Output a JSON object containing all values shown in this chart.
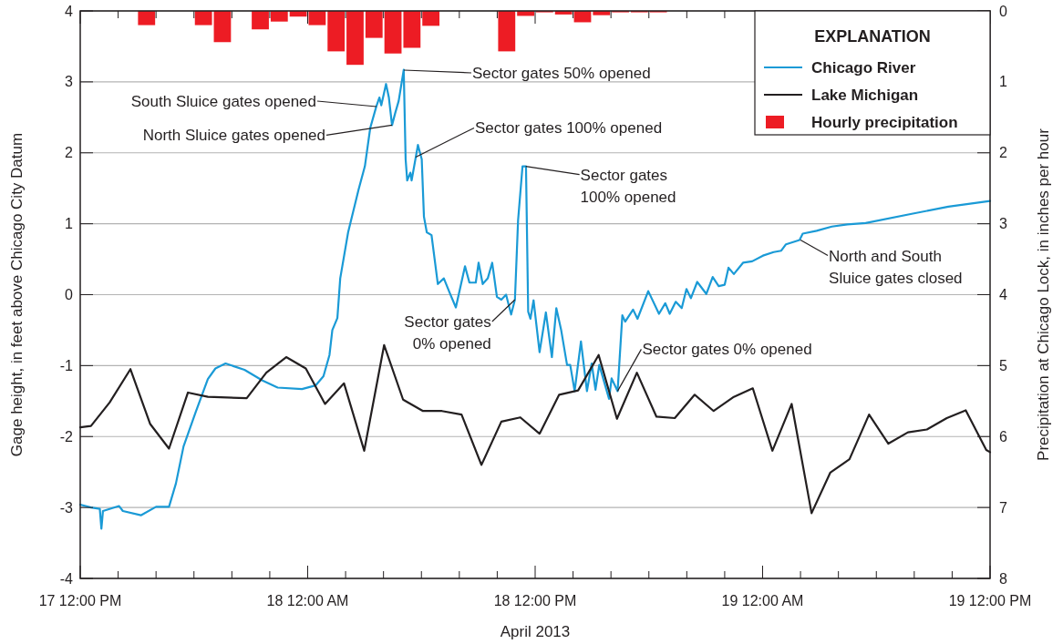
{
  "chart_data": {
    "type": "line",
    "xlabel": "April 2013",
    "ylabel": "Gage height, in feet above Chicago City Datum",
    "y2label": "Precipitation at Chicago Lock, in inches per hour",
    "legend_title": "EXPLANATION",
    "legend": "top right",
    "grid": "y",
    "marker": "none",
    "line_style": "solid",
    "xlim": [
      "2013-04-17T12:00",
      "2013-04-19T12:00"
    ],
    "xticks": [
      {
        "value": "2013-04-17T12:00",
        "label": "17 12:00 PM"
      },
      {
        "value": "2013-04-18T00:00",
        "label": "18 12:00 AM"
      },
      {
        "value": "2013-04-18T12:00",
        "label": "18 12:00 PM"
      },
      {
        "value": "2013-04-19T00:00",
        "label": "19 12:00 AM"
      },
      {
        "value": "2013-04-19T12:00",
        "label": "19 12:00 PM"
      },
      {
        "value": "2013-04-17T14:00",
        "label": null
      },
      {
        "value": "2013-04-17T16:00",
        "label": null
      },
      {
        "value": "2013-04-17T18:00",
        "label": null
      },
      {
        "value": "2013-04-17T20:00",
        "label": null
      },
      {
        "value": "2013-04-17T22:00",
        "label": null
      },
      {
        "value": "2013-04-18T02:00",
        "label": null
      },
      {
        "value": "2013-04-18T04:00",
        "label": null
      },
      {
        "value": "2013-04-18T06:00",
        "label": null
      },
      {
        "value": "2013-04-18T08:00",
        "label": null
      },
      {
        "value": "2013-04-18T10:00",
        "label": null
      },
      {
        "value": "2013-04-18T14:00",
        "label": null
      },
      {
        "value": "2013-04-18T16:00",
        "label": null
      },
      {
        "value": "2013-04-18T18:00",
        "label": null
      },
      {
        "value": "2013-04-18T20:00",
        "label": null
      },
      {
        "value": "2013-04-18T22:00",
        "label": null
      },
      {
        "value": "2013-04-19T02:00",
        "label": null
      },
      {
        "value": "2013-04-19T04:00",
        "label": null
      },
      {
        "value": "2013-04-19T06:00",
        "label": null
      },
      {
        "value": "2013-04-19T08:00",
        "label": null
      },
      {
        "value": "2013-04-19T10:00",
        "label": null
      }
    ],
    "ylim": [
      -4,
      4
    ],
    "yticks": [
      -4,
      -3,
      -2,
      -1,
      0,
      1,
      2,
      3,
      4
    ],
    "y2lim": [
      8,
      0
    ],
    "y2ticks": [
      0,
      1,
      2,
      3,
      4,
      5,
      6,
      7,
      8
    ],
    "series": [
      {
        "name": "Chicago River",
        "color": "#1a9ad6",
        "x": [
          "2013-04-17T12:00",
          "2013-04-17T12:34",
          "2013-04-17T13:02",
          "2013-04-17T13:07",
          "2013-04-17T13:12",
          "2013-04-17T14:03",
          "2013-04-17T14:15",
          "2013-04-17T15:12",
          "2013-04-17T16:00",
          "2013-04-17T16:41",
          "2013-04-17T17:03",
          "2013-04-17T17:27",
          "2013-04-17T18:05",
          "2013-04-17T18:44",
          "2013-04-17T19:08",
          "2013-04-17T19:40",
          "2013-04-17T20:40",
          "2013-04-17T21:37",
          "2013-04-17T22:25",
          "2013-04-17T23:42",
          "2013-04-18T00:25",
          "2013-04-18T00:50",
          "2013-04-18T01:09",
          "2013-04-18T01:18",
          "2013-04-18T01:34",
          "2013-04-18T01:43",
          "2013-04-18T02:08",
          "2013-04-18T02:41",
          "2013-04-18T03:01",
          "2013-04-18T03:18",
          "2013-04-18T03:37",
          "2013-04-18T03:47",
          "2013-04-18T03:53",
          "2013-04-18T04:08",
          "2013-04-18T04:17",
          "2013-04-18T04:27",
          "2013-04-18T04:37",
          "2013-04-18T04:48",
          "2013-04-18T05:04",
          "2013-04-18T05:10",
          "2013-04-18T05:15",
          "2013-04-18T05:25",
          "2013-04-18T05:29",
          "2013-04-18T05:49",
          "2013-04-18T06:01",
          "2013-04-18T06:08",
          "2013-04-18T06:17",
          "2013-04-18T06:32",
          "2013-04-18T06:52",
          "2013-04-18T07:11",
          "2013-04-18T07:30",
          "2013-04-18T07:49",
          "2013-04-18T08:18",
          "2013-04-18T08:32",
          "2013-04-18T08:52",
          "2013-04-18T09:01",
          "2013-04-18T09:14",
          "2013-04-18T09:30",
          "2013-04-18T09:44",
          "2013-04-18T09:59",
          "2013-04-18T10:13",
          "2013-04-18T10:28",
          "2013-04-18T10:44",
          "2013-04-18T10:56",
          "2013-04-18T11:06",
          "2013-04-18T11:20",
          "2013-04-18T11:31",
          "2013-04-18T11:38",
          "2013-04-18T11:45",
          "2013-04-18T11:55",
          "2013-04-18T12:14",
          "2013-04-18T12:34",
          "2013-04-18T12:53",
          "2013-04-18T13:07",
          "2013-04-18T13:22",
          "2013-04-18T13:41",
          "2013-04-18T13:51",
          "2013-04-18T14:05",
          "2013-04-18T14:25",
          "2013-04-18T14:44",
          "2013-04-18T14:59",
          "2013-04-18T15:11",
          "2013-04-18T15:23",
          "2013-04-18T15:54",
          "2013-04-18T16:02",
          "2013-04-18T16:21",
          "2013-04-18T16:36",
          "2013-04-18T16:45",
          "2013-04-18T17:10",
          "2013-04-18T17:24",
          "2013-04-18T17:58",
          "2013-04-18T18:32",
          "2013-04-18T18:52",
          "2013-04-18T19:06",
          "2013-04-18T19:25",
          "2013-04-18T19:44",
          "2013-04-18T19:59",
          "2013-04-18T20:13",
          "2013-04-18T20:33",
          "2013-04-18T21:02",
          "2013-04-18T21:22",
          "2013-04-18T21:41",
          "2013-04-18T22:00",
          "2013-04-18T22:12",
          "2013-04-18T22:29",
          "2013-04-18T22:58",
          "2013-04-18T23:27",
          "2013-04-19T00:01",
          "2013-04-19T00:35",
          "2013-04-19T00:59",
          "2013-04-19T01:14",
          "2013-04-19T01:57",
          "2013-04-19T02:07",
          "2013-04-19T02:51",
          "2013-04-19T03:39",
          "2013-04-19T04:28",
          "2013-04-19T05:26",
          "2013-04-19T07:52",
          "2013-04-19T09:48",
          "2013-04-19T12:00"
        ],
        "values": [
          -2.96,
          -3.0,
          -3.02,
          -3.3,
          -3.05,
          -2.98,
          -3.05,
          -3.11,
          -2.99,
          -2.99,
          -2.66,
          -2.14,
          -1.66,
          -1.19,
          -1.04,
          -0.97,
          -1.06,
          -1.21,
          -1.31,
          -1.33,
          -1.28,
          -1.15,
          -0.85,
          -0.5,
          -0.33,
          0.23,
          0.88,
          1.48,
          1.81,
          2.35,
          2.65,
          2.78,
          2.67,
          2.97,
          2.78,
          2.39,
          2.56,
          2.73,
          3.17,
          1.91,
          1.61,
          1.72,
          1.61,
          2.11,
          1.91,
          1.1,
          0.88,
          0.84,
          0.15,
          0.23,
          0.02,
          -0.18,
          0.4,
          0.17,
          0.17,
          0.45,
          0.15,
          0.23,
          0.45,
          -0.03,
          -0.07,
          0.0,
          -0.28,
          -0.07,
          1.05,
          1.81,
          1.81,
          -0.24,
          -0.34,
          -0.08,
          -0.81,
          -0.25,
          -0.88,
          -0.19,
          -0.49,
          -0.99,
          -0.99,
          -1.36,
          -0.66,
          -1.36,
          -0.97,
          -1.34,
          -0.99,
          -1.47,
          -1.18,
          -1.36,
          -0.29,
          -0.38,
          -0.21,
          -0.34,
          0.05,
          -0.27,
          -0.12,
          -0.27,
          -0.1,
          -0.19,
          0.08,
          -0.05,
          0.18,
          0.01,
          0.25,
          0.12,
          0.14,
          0.38,
          0.29,
          0.45,
          0.47,
          0.55,
          0.6,
          0.62,
          0.71,
          0.77,
          0.86,
          0.9,
          0.96,
          0.99,
          1.01,
          1.14,
          1.24,
          1.32
        ]
      },
      {
        "name": "Lake Michigan",
        "color": "#231f20",
        "x": [
          "2013-04-17T12:00",
          "2013-04-17T12:34",
          "2013-04-17T13:33",
          "2013-04-17T14:39",
          "2013-04-17T15:41",
          "2013-04-17T16:41",
          "2013-04-17T17:41",
          "2013-04-17T18:44",
          "2013-04-17T20:47",
          "2013-04-17T21:49",
          "2013-04-17T22:52",
          "2013-04-17T23:54",
          "2013-04-18T00:55",
          "2013-04-18T01:55",
          "2013-04-18T02:59",
          "2013-04-18T04:02",
          "2013-04-18T05:02",
          "2013-04-18T06:05",
          "2013-04-18T07:05",
          "2013-04-18T08:07",
          "2013-04-18T09:10",
          "2013-04-18T10:13",
          "2013-04-18T11:13",
          "2013-04-18T12:14",
          "2013-04-18T13:16",
          "2013-04-18T14:16",
          "2013-04-18T15:21",
          "2013-04-18T16:19",
          "2013-04-18T17:22",
          "2013-04-18T18:24",
          "2013-04-18T19:22",
          "2013-04-18T20:25",
          "2013-04-18T21:25",
          "2013-04-18T22:29",
          "2013-04-18T23:29",
          "2013-04-19T00:31",
          "2013-04-19T01:32",
          "2013-04-19T02:35",
          "2013-04-19T03:34",
          "2013-04-19T04:35",
          "2013-04-19T05:37",
          "2013-04-19T06:38",
          "2013-04-19T07:40",
          "2013-04-19T08:40",
          "2013-04-19T09:43",
          "2013-04-19T10:43",
          "2013-04-19T11:48",
          "2013-04-19T12:00"
        ],
        "values": [
          -1.87,
          -1.85,
          -1.52,
          -1.05,
          -1.82,
          -2.17,
          -1.38,
          -1.44,
          -1.46,
          -1.1,
          -0.88,
          -1.04,
          -1.54,
          -1.25,
          -2.2,
          -0.71,
          -1.48,
          -1.64,
          -1.64,
          -1.69,
          -2.4,
          -1.79,
          -1.73,
          -1.96,
          -1.41,
          -1.35,
          -0.85,
          -1.75,
          -1.1,
          -1.72,
          -1.74,
          -1.41,
          -1.64,
          -1.44,
          -1.32,
          -2.2,
          -1.54,
          -3.08,
          -2.51,
          -2.32,
          -1.69,
          -2.1,
          -1.94,
          -1.9,
          -1.74,
          -1.63,
          -2.19,
          -2.22
        ]
      },
      {
        "name": "Hourly precipitation",
        "type": "bar",
        "axis": "y2",
        "color": "#ed1c24",
        "x": [
          "2013-04-17T15:30",
          "2013-04-17T18:30",
          "2013-04-17T19:30",
          "2013-04-17T21:30",
          "2013-04-17T22:30",
          "2013-04-17T23:30",
          "2013-04-18T00:30",
          "2013-04-18T01:30",
          "2013-04-18T02:30",
          "2013-04-18T03:30",
          "2013-04-18T04:30",
          "2013-04-18T05:30",
          "2013-04-18T06:30",
          "2013-04-18T10:30",
          "2013-04-18T11:30",
          "2013-04-18T12:30",
          "2013-04-18T13:30",
          "2013-04-18T14:30",
          "2013-04-18T15:30",
          "2013-04-18T16:30",
          "2013-04-18T17:30",
          "2013-04-18T18:30"
        ],
        "values": [
          0.2,
          0.2,
          0.44,
          0.26,
          0.15,
          0.08,
          0.2,
          0.57,
          0.76,
          0.38,
          0.6,
          0.52,
          0.21,
          0.57,
          0.07,
          0.02,
          0.05,
          0.16,
          0.06,
          0.02,
          0.02,
          0.02
        ]
      }
    ],
    "annotations": [
      "Sector gates 50% opened",
      "South Sluice gates opened",
      {
        "text": "North Sluice gates opened",
        "x": "2013-04-18T04:27",
        "y": 2.39
      },
      {
        "text": "Sector gates 100% opened",
        "x": "2013-04-18T05:42",
        "y": 1.94
      },
      {
        "text": "Sector gates\n100% opened",
        "x": "2013-04-18T11:30",
        "y": 1.81
      },
      {
        "text": "Sector gates\n0% opened",
        "x": "2013-04-18T10:56",
        "y": -0.07
      },
      {
        "text": "Sector gates 0% opened",
        "x": "2013-04-18T16:21",
        "y": -1.36
      },
      {
        "text": "North and South\nSluice gates closed",
        "x": "2013-04-19T02:00",
        "y": 0.77
      }
    ]
  }
}
